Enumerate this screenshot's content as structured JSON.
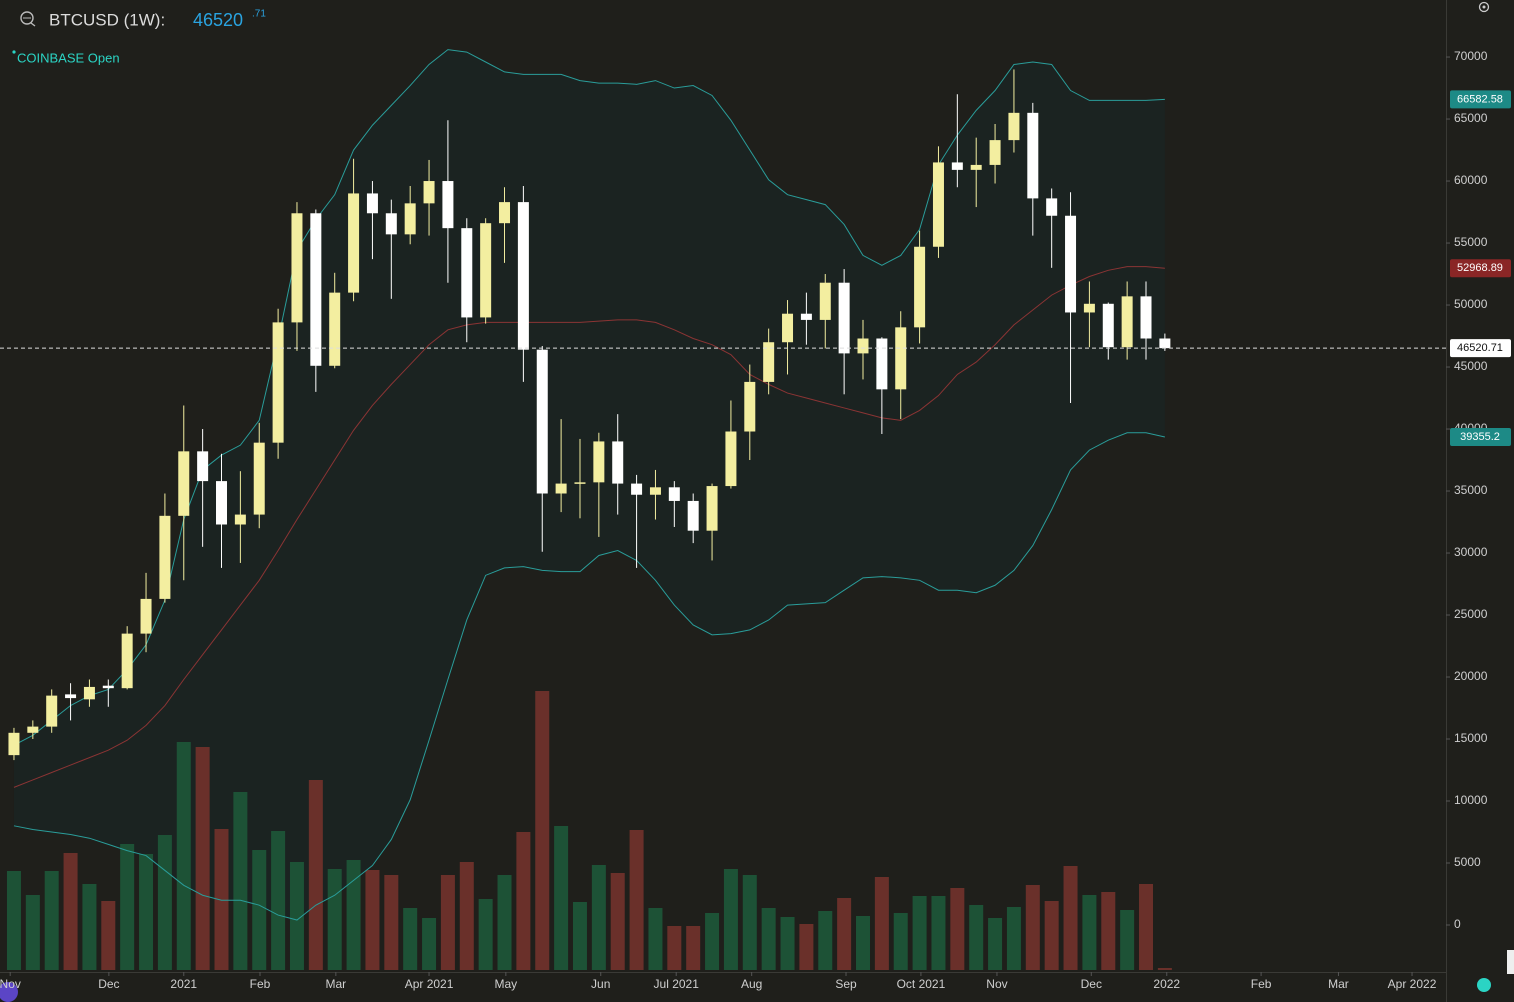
{
  "header": {
    "symbol": "BTCUSD (1W):",
    "price": "46520",
    "price_fraction": ".71",
    "exchange_status": "COINBASE Open"
  },
  "chart_data": {
    "type": "candlestick",
    "open": [
      13700,
      15500,
      16000,
      18600,
      18200,
      19300,
      19100,
      23500,
      26300,
      33000,
      38200,
      35800,
      32300,
      33100,
      38900,
      48600,
      57400,
      45100,
      51000,
      59000,
      57400,
      55700,
      58200,
      60000,
      56200,
      49000,
      56600,
      58300,
      46400,
      34800,
      35600,
      35700,
      39000,
      35600,
      34700,
      35300,
      34200,
      31800,
      35400,
      39800,
      43800,
      47000,
      49300,
      48800,
      51800,
      46100,
      47300,
      43200,
      48200,
      54700,
      61500,
      60900,
      61300,
      63300,
      65500,
      58600,
      57200,
      49400,
      50100,
      46600,
      50700,
      47300
    ],
    "high": [
      15900,
      16500,
      19000,
      19500,
      19800,
      19800,
      24100,
      28400,
      34800,
      41900,
      40000,
      38000,
      36600,
      40500,
      49700,
      58300,
      57700,
      52600,
      61800,
      60000,
      58500,
      59600,
      61700,
      64900,
      57000,
      57000,
      59500,
      59600,
      46700,
      40800,
      39200,
      39700,
      41200,
      36300,
      36700,
      35800,
      34800,
      35600,
      42300,
      45200,
      48100,
      50400,
      51000,
      52500,
      52900,
      48800,
      47400,
      49500,
      56000,
      62800,
      67000,
      63500,
      64600,
      69000,
      66300,
      59400,
      59100,
      51900,
      50200,
      51900,
      51900,
      47700
    ],
    "low": [
      13300,
      15000,
      15500,
      16500,
      17600,
      17600,
      19000,
      22000,
      26000,
      27800,
      30500,
      28800,
      29200,
      32000,
      37600,
      46300,
      43000,
      44900,
      50300,
      53700,
      50500,
      54900,
      55600,
      51800,
      47000,
      48500,
      53400,
      43800,
      30100,
      33300,
      32800,
      31300,
      33100,
      28800,
      32700,
      32100,
      30800,
      29400,
      35200,
      37500,
      42800,
      44400,
      46800,
      46500,
      42800,
      44000,
      39600,
      40800,
      46900,
      53800,
      59500,
      57900,
      59800,
      62300,
      55600,
      53000,
      42100,
      46600,
      45600,
      45600,
      45600,
      46300
    ],
    "close": [
      15500,
      16000,
      18500,
      18300,
      19200,
      19100,
      23500,
      26300,
      33000,
      38200,
      35800,
      32300,
      33100,
      38900,
      48600,
      57400,
      45100,
      51000,
      59000,
      57400,
      55700,
      58200,
      60000,
      56200,
      49000,
      56600,
      58300,
      46400,
      34800,
      35600,
      35700,
      39000,
      35600,
      34700,
      35300,
      34200,
      31800,
      35400,
      39800,
      43800,
      47000,
      49300,
      48800,
      51800,
      46100,
      47300,
      43200,
      48200,
      54700,
      61500,
      60900,
      61300,
      63300,
      65500,
      58600,
      57200,
      49400,
      50100,
      46600,
      50700,
      47300,
      46520.71
    ],
    "up_color": "#f3eea0",
    "down_color": "#ffffff",
    "volume": {
      "values": [
        99,
        75,
        99,
        117,
        86,
        69,
        126,
        116,
        135,
        228,
        223,
        141,
        178,
        120,
        139,
        108,
        190,
        101,
        110,
        100,
        95,
        62,
        52,
        95,
        108,
        71,
        95,
        138,
        279,
        144,
        68,
        105,
        97,
        140,
        62,
        44,
        44,
        57,
        101,
        95,
        62,
        53,
        46,
        59,
        72,
        54,
        93,
        57,
        74,
        74,
        82,
        65,
        52,
        63,
        85,
        69,
        104,
        75,
        78,
        60,
        86,
        2
      ],
      "ylim": [
        0,
        300
      ],
      "up_color": "#1d5236",
      "down_color": "#6a302a"
    },
    "bands": [
      {
        "color": "#2a9d9a",
        "tag_color": "#1d8a86",
        "values": [
          14500,
          15300,
          16500,
          17700,
          18500,
          19000,
          20600,
          22600,
          26200,
          32700,
          36700,
          37900,
          38700,
          40700,
          47200,
          54400,
          56900,
          58900,
          62500,
          64500,
          66100,
          67700,
          69400,
          70600,
          70400,
          69600,
          68800,
          68600,
          68600,
          68600,
          68100,
          67900,
          67900,
          67800,
          68100,
          67500,
          67700,
          66900,
          64900,
          62500,
          60100,
          58900,
          58500,
          58100,
          56500,
          54000,
          53200,
          54000,
          56100,
          61300,
          63700,
          65700,
          67300,
          69400,
          69600,
          69400,
          67300,
          66500,
          66500,
          66500,
          66500,
          66582.58
        ]
      },
      {
        "color": "#8b3434",
        "tag_color": "#8a2626",
        "values": [
          11100,
          11700,
          12300,
          12900,
          13500,
          14100,
          14900,
          16100,
          17700,
          19800,
          21800,
          23800,
          25800,
          27800,
          30200,
          32700,
          35100,
          37500,
          39900,
          41900,
          43600,
          45200,
          46800,
          48000,
          48400,
          48600,
          48600,
          48600,
          48600,
          48600,
          48600,
          48700,
          48800,
          48800,
          48600,
          48000,
          47300,
          46800,
          46000,
          44400,
          43600,
          42900,
          42500,
          42100,
          41700,
          41300,
          40900,
          40700,
          41500,
          42700,
          44400,
          45400,
          46800,
          48400,
          49600,
          50800,
          51600,
          52300,
          52800,
          53100,
          53100,
          52968.89
        ]
      },
      {
        "color": "#2a9d9a",
        "tag_color": "#1d8a86",
        "values": [
          8000,
          7700,
          7500,
          7300,
          7000,
          6500,
          6000,
          5600,
          4400,
          3200,
          2400,
          2000,
          2000,
          1600,
          800,
          400,
          1600,
          2400,
          3600,
          4800,
          6900,
          10100,
          14900,
          19800,
          24600,
          28200,
          28800,
          28900,
          28600,
          28500,
          28500,
          29800,
          30200,
          29400,
          27800,
          25800,
          24200,
          23400,
          23500,
          23800,
          24600,
          25800,
          25900,
          26000,
          27000,
          28000,
          28100,
          28000,
          27800,
          27000,
          27000,
          26800,
          27400,
          28600,
          30600,
          33500,
          36700,
          38300,
          39100,
          39700,
          39700,
          39355.2
        ]
      }
    ],
    "band_fill": "#1b2321",
    "xlim": [
      -0.74,
      75.9
    ],
    "xticks": [
      {
        "value": -0.2,
        "label": "Nov"
      },
      {
        "value": 5.03,
        "label": "Dec"
      },
      {
        "value": 9.0,
        "label": "2021"
      },
      {
        "value": 13.04,
        "label": "Feb"
      },
      {
        "value": 17.06,
        "label": "Mar"
      },
      {
        "value": 22.0,
        "label": "Apr 2021"
      },
      {
        "value": 26.07,
        "label": "May"
      },
      {
        "value": 31.1,
        "label": "Jun"
      },
      {
        "value": 35.1,
        "label": "Jul 2021"
      },
      {
        "value": 39.1,
        "label": "Aug"
      },
      {
        "value": 44.1,
        "label": "Sep"
      },
      {
        "value": 48.07,
        "label": "Oct 2021"
      },
      {
        "value": 52.1,
        "label": "Nov"
      },
      {
        "value": 57.1,
        "label": "Dec"
      },
      {
        "value": 61.1,
        "label": "2022"
      },
      {
        "value": 66.1,
        "label": "Feb"
      },
      {
        "value": 70.2,
        "label": "Mar"
      },
      {
        "value": 74.1,
        "label": "Apr 2022"
      }
    ],
    "ylim": [
      -3790,
      74600
    ],
    "yticks": [
      0,
      5000,
      10000,
      15000,
      20000,
      25000,
      30000,
      35000,
      40000,
      45000,
      50000,
      55000,
      60000,
      65000,
      70000
    ],
    "last_price_line": true
  }
}
